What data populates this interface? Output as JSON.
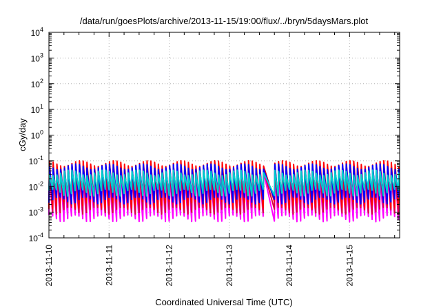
{
  "chart_data": {
    "type": "line",
    "title": "/data/run/goesPlots/archive/2013-11-15/19:00/flux/../bryn/5daysMars.plot",
    "xlabel": "Coordinated Universal Time (UTC)",
    "ylabel": "cGy/day",
    "yscale": "log",
    "ylim": [
      0.0001,
      10000
    ],
    "xlim": [
      "2013-11-10",
      "2013-11-15T20:00"
    ],
    "x_tick_labels": [
      "2013-11-10",
      "2013-11-11",
      "2013-11-12",
      "2013-11-13",
      "2013-11-14",
      "2013-11-15"
    ],
    "y_ticks": [
      {
        "base": "10",
        "exp": "-4"
      },
      {
        "base": "10",
        "exp": "-3"
      },
      {
        "base": "10",
        "exp": "-2"
      },
      {
        "base": "10",
        "exp": "-1"
      },
      {
        "base": "10",
        "exp": "0"
      },
      {
        "base": "10",
        "exp": "1"
      },
      {
        "base": "10",
        "exp": "2"
      },
      {
        "base": "10",
        "exp": "3"
      },
      {
        "base": "10",
        "exp": "4"
      }
    ],
    "grid": true,
    "sawtooth_period_hours": 1.5,
    "series": [
      {
        "color": "#ff00ff",
        "peak": 0.03,
        "trough": 0.0006
      },
      {
        "color": "#dd0044",
        "peak": 0.045,
        "trough": 0.0012
      },
      {
        "color": "#ff0000",
        "peak": 0.08,
        "trough": 0.002
      },
      {
        "color": "#0000ff",
        "peak": 0.06,
        "trough": 0.003
      },
      {
        "color": "#00cccc",
        "peak": 0.035,
        "trough": 0.006
      }
    ]
  }
}
